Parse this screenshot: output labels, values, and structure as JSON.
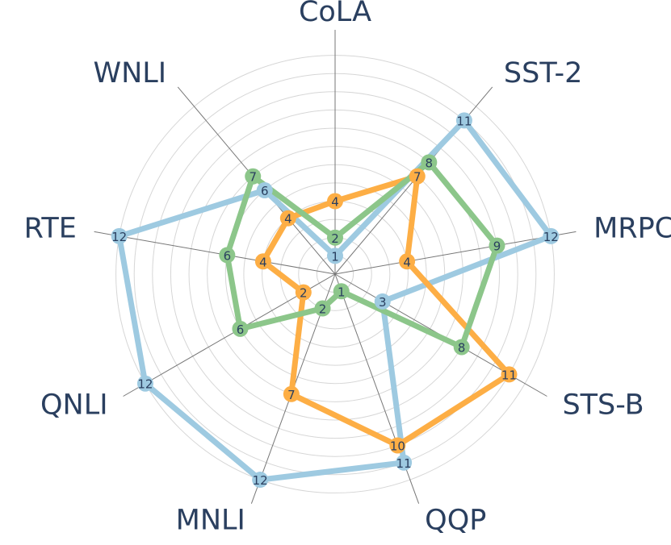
{
  "chart_data": {
    "type": "radar",
    "categories": [
      "CoLA",
      "SST-2",
      "MRPC",
      "STS-B",
      "QQP",
      "MNLI",
      "QNLI",
      "RTE",
      "WNLI"
    ],
    "series": [
      {
        "color": "#9ecae1",
        "values": [
          1,
          11,
          12,
          3,
          11,
          12,
          12,
          12,
          6
        ]
      },
      {
        "color": "#fdae45",
        "values": [
          4,
          7,
          4,
          11,
          10,
          7,
          2,
          4,
          4
        ]
      },
      {
        "color": "#8cc68a",
        "values": [
          2,
          8,
          9,
          8,
          1,
          2,
          6,
          6,
          7
        ]
      }
    ],
    "rlim": [
      0,
      12.6
    ],
    "rticks": [
      1,
      2,
      3,
      4,
      5,
      6,
      7,
      8,
      9,
      10,
      11,
      12
    ],
    "grid": true
  }
}
